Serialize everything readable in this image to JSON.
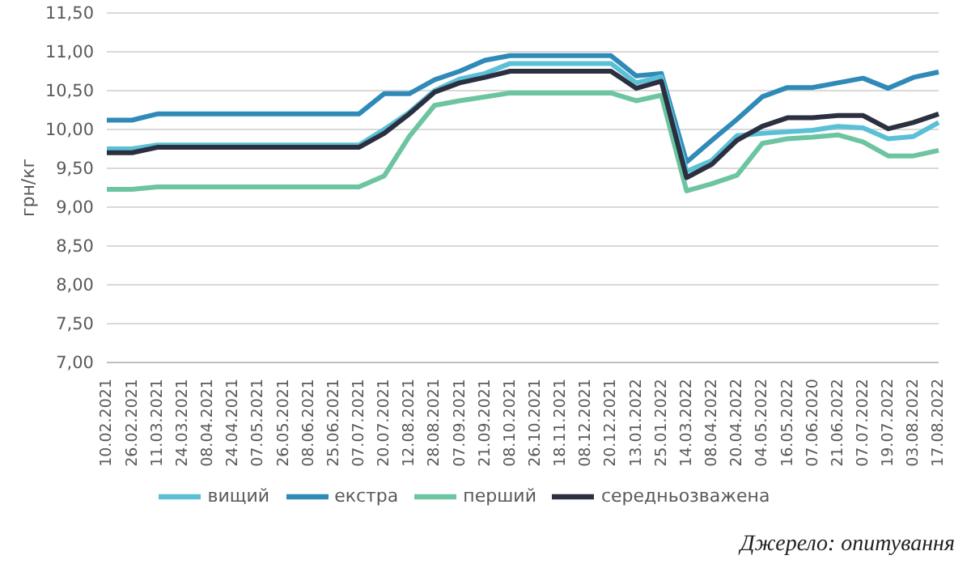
{
  "chart_data": {
    "type": "line",
    "ylabel": "грн/кг",
    "categories": [
      "10.02.2021",
      "26.02.2021",
      "11.03.2021",
      "24.03.2021",
      "08.04.2021",
      "24.04.2021",
      "07.05.2021",
      "26.05.2021",
      "08.06.2021",
      "25.06.2021",
      "07.07.2021",
      "20.07.2021",
      "12.08.2021",
      "28.08.2021",
      "07.09.2021",
      "21.09.2021",
      "08.10.2021",
      "26.10.2021",
      "18.11.2021",
      "08.12.2021",
      "20.12.2021",
      "13.01.2022",
      "25.01.2022",
      "14.03.2022",
      "08.04.2022",
      "20.04.2022",
      "04.05.2022",
      "16.05.2022",
      "07.06.2020",
      "21.06.2022",
      "07.07.2022",
      "19.07.2022",
      "03.08.2022",
      "17.08.2022"
    ],
    "series": [
      {
        "name": "екстра",
        "color": "#2f8ab8",
        "values": [
          10.12,
          10.12,
          10.2,
          10.2,
          10.2,
          10.2,
          10.2,
          10.2,
          10.2,
          10.2,
          10.2,
          10.46,
          10.46,
          10.64,
          10.75,
          10.89,
          10.95,
          10.95,
          10.95,
          10.95,
          10.95,
          10.69,
          10.72,
          9.58,
          9.86,
          10.13,
          10.42,
          10.54,
          10.54,
          10.6,
          10.66,
          10.53,
          10.67,
          10.74
        ]
      },
      {
        "name": "вищий",
        "color": "#5bc0d6",
        "values": [
          9.75,
          9.75,
          9.8,
          9.8,
          9.8,
          9.8,
          9.8,
          9.8,
          9.8,
          9.8,
          9.8,
          10.0,
          10.22,
          10.5,
          10.65,
          10.72,
          10.85,
          10.85,
          10.85,
          10.85,
          10.85,
          10.6,
          10.68,
          9.46,
          9.6,
          9.92,
          9.95,
          9.97,
          9.99,
          10.04,
          10.02,
          9.88,
          9.91,
          10.09
        ]
      },
      {
        "name": "перший",
        "color": "#6cc5a0",
        "values": [
          9.23,
          9.23,
          9.26,
          9.26,
          9.26,
          9.26,
          9.26,
          9.26,
          9.26,
          9.26,
          9.26,
          9.4,
          9.91,
          10.31,
          10.37,
          10.42,
          10.47,
          10.47,
          10.47,
          10.47,
          10.47,
          10.37,
          10.44,
          9.21,
          9.3,
          9.41,
          9.82,
          9.88,
          9.9,
          9.93,
          9.84,
          9.66,
          9.66,
          9.73
        ]
      },
      {
        "name": "середньозважена",
        "color": "#2b2f3f",
        "values": [
          9.7,
          9.7,
          9.77,
          9.77,
          9.77,
          9.77,
          9.77,
          9.77,
          9.77,
          9.77,
          9.77,
          9.95,
          10.2,
          10.48,
          10.6,
          10.67,
          10.75,
          10.75,
          10.75,
          10.75,
          10.75,
          10.53,
          10.62,
          9.38,
          9.55,
          9.86,
          10.04,
          10.15,
          10.15,
          10.18,
          10.18,
          10.01,
          10.09,
          10.2
        ]
      }
    ],
    "ylim": [
      7,
      11.5
    ],
    "yticks": [
      {
        "value": 7,
        "label": "7,00"
      },
      {
        "value": 7.5,
        "label": "7,50"
      },
      {
        "value": 8,
        "label": "8,00"
      },
      {
        "value": 8.5,
        "label": "8,50"
      },
      {
        "value": 9,
        "label": "9,00"
      },
      {
        "value": 9.5,
        "label": "9,50"
      },
      {
        "value": 10,
        "label": "10,00"
      },
      {
        "value": 10.5,
        "label": "10,50"
      },
      {
        "value": 11,
        "label": "11,00"
      },
      {
        "value": 11.5,
        "label": "11,50"
      }
    ],
    "grid": "y",
    "legend": "bottom",
    "marker": "none",
    "line_style": "solid",
    "annotations": [
      "Джерело: опитування"
    ]
  }
}
